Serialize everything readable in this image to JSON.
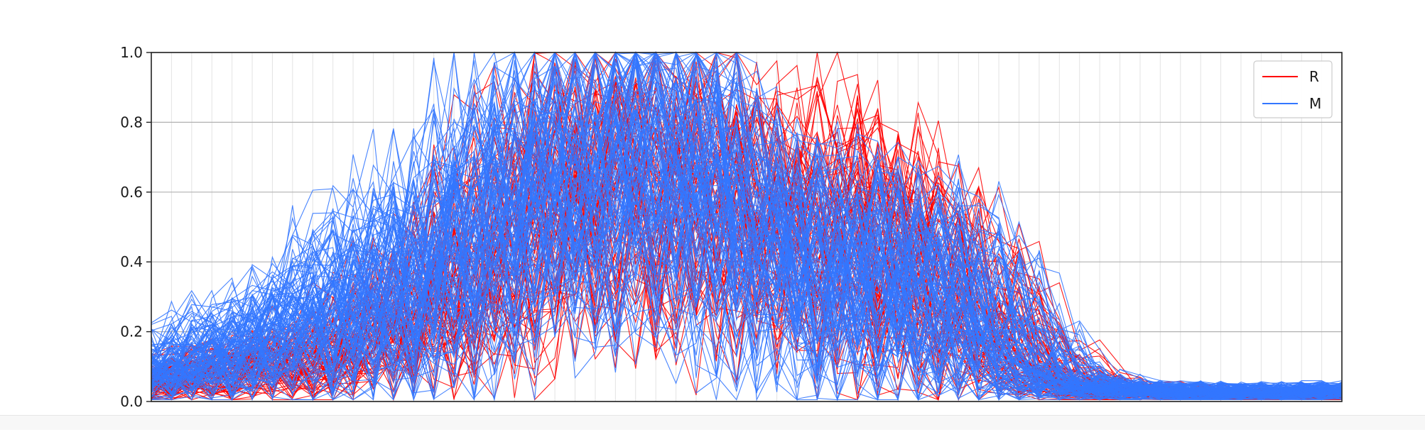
{
  "chart_data": {
    "type": "line",
    "title": "",
    "xlabel": "",
    "ylabel": "",
    "x_range": [
      0,
      59
    ],
    "ylim": [
      0.0,
      1.0
    ],
    "y_ticks": [
      "0.0",
      "0.2",
      "0.4",
      "0.6",
      "0.8",
      "1.0"
    ],
    "grid": true,
    "legend_position": "top-right",
    "legend": [
      "R",
      "M"
    ],
    "series": [
      {
        "name": "R",
        "color": "#ff0000",
        "line_count": 80,
        "profile": [
          0.06,
          0.07,
          0.08,
          0.09,
          0.1,
          0.1,
          0.11,
          0.12,
          0.14,
          0.16,
          0.19,
          0.22,
          0.25,
          0.28,
          0.31,
          0.35,
          0.4,
          0.46,
          0.52,
          0.58,
          0.63,
          0.66,
          0.68,
          0.7,
          0.71,
          0.7,
          0.68,
          0.66,
          0.62,
          0.58,
          0.55,
          0.55,
          0.57,
          0.58,
          0.57,
          0.54,
          0.5,
          0.46,
          0.42,
          0.38,
          0.34,
          0.29,
          0.23,
          0.16,
          0.1,
          0.07,
          0.05,
          0.04,
          0.03,
          0.03,
          0.03,
          0.03,
          0.02,
          0.02,
          0.02,
          0.02,
          0.02,
          0.02,
          0.02,
          0.02
        ],
        "spread": 0.32
      },
      {
        "name": "M",
        "color": "#3377ff",
        "line_count": 120,
        "profile": [
          0.08,
          0.1,
          0.12,
          0.14,
          0.16,
          0.18,
          0.2,
          0.22,
          0.25,
          0.28,
          0.3,
          0.33,
          0.35,
          0.38,
          0.42,
          0.47,
          0.52,
          0.57,
          0.61,
          0.64,
          0.66,
          0.67,
          0.68,
          0.7,
          0.72,
          0.74,
          0.74,
          0.7,
          0.64,
          0.56,
          0.48,
          0.44,
          0.42,
          0.41,
          0.4,
          0.39,
          0.38,
          0.37,
          0.36,
          0.34,
          0.32,
          0.28,
          0.22,
          0.15,
          0.09,
          0.06,
          0.05,
          0.04,
          0.035,
          0.03,
          0.03,
          0.03,
          0.03,
          0.03,
          0.03,
          0.03,
          0.03,
          0.03,
          0.03,
          0.03
        ],
        "spread": 0.34
      }
    ]
  }
}
